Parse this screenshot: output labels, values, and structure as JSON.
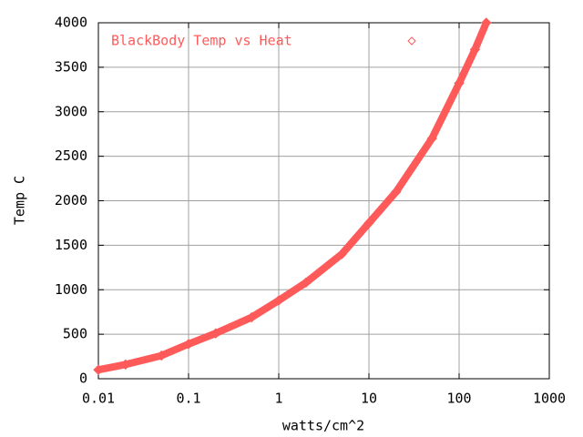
{
  "chart_data": {
    "type": "scatter",
    "xlabel": "watts/cm^2",
    "ylabel": "Temp C",
    "xlog": true,
    "grid": true,
    "legend": "top-left",
    "xlim": [
      0.01,
      1000
    ],
    "xticks": [
      0.01,
      0.1,
      1,
      10,
      100,
      1000
    ],
    "ylim": [
      0,
      4000
    ],
    "yticks": [
      0,
      500,
      1000,
      1500,
      2000,
      2500,
      3000,
      3500,
      4000
    ],
    "series": [
      {
        "name": "BlackBody Temp vs Heat",
        "color": "#ff5a5a",
        "marker": "diamond",
        "x": [
          0.01,
          0.02,
          0.05,
          0.1,
          0.2,
          0.5,
          1,
          2,
          5,
          10,
          20,
          50,
          100,
          150,
          200
        ],
        "values": [
          100,
          160,
          260,
          390,
          510,
          690,
          880,
          1080,
          1400,
          1750,
          2100,
          2700,
          3320,
          3700,
          4000
        ]
      }
    ]
  }
}
